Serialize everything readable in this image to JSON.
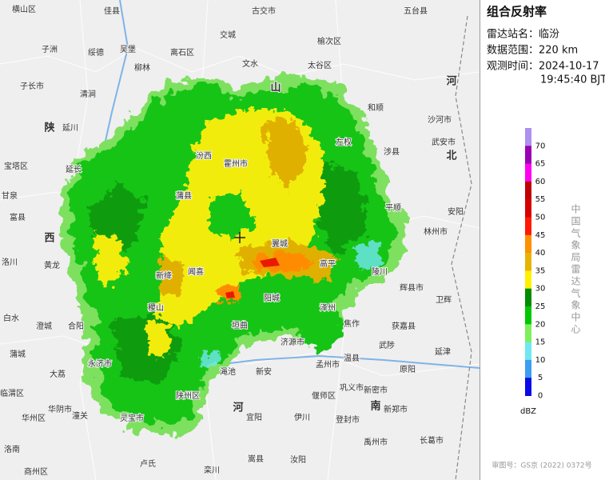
{
  "panel": {
    "title": "组合反射率",
    "station": "雷达站名：临汾",
    "range": "数据范围：220 km",
    "time_date": "观测时间：2024-10-17",
    "time_clock": "19:45:40 BJT",
    "unit": "dBZ",
    "credit": "中国气象局雷达气象中心",
    "approval": "审图号：GS京 (2022) 0372号",
    "levels": [
      {
        "value": 70,
        "color": "#ad90f0"
      },
      {
        "value": 65,
        "color": "#9a00b4"
      },
      {
        "value": 60,
        "color": "#ff00f0"
      },
      {
        "value": 55,
        "color": "#c00000"
      },
      {
        "value": 50,
        "color": "#d60000"
      },
      {
        "value": 45,
        "color": "#ff1a00"
      },
      {
        "value": 40,
        "color": "#ff9000"
      },
      {
        "value": 35,
        "color": "#e6b400"
      },
      {
        "value": 30,
        "color": "#fff000"
      },
      {
        "value": 25,
        "color": "#008c00"
      },
      {
        "value": 20,
        "color": "#00c800"
      },
      {
        "value": 15,
        "color": "#7ef05a"
      },
      {
        "value": 10,
        "color": "#70e8f0"
      },
      {
        "value": 5,
        "color": "#3c9ef0"
      },
      {
        "value": 0,
        "color": "#0a0ae8"
      }
    ]
  },
  "map": {
    "regions": [
      "陕",
      "西",
      "山",
      "河",
      "北",
      "河",
      "南"
    ],
    "places": [
      "横山区",
      "佳县",
      "古交市",
      "五台县",
      "子洲",
      "绥德",
      "吴堡",
      "离石区",
      "交城",
      "榆次区",
      "太谷区",
      "子长市",
      "清涧",
      "柳林",
      "文水",
      "延川",
      "宝塔区",
      "延长",
      "甘泉",
      "富县",
      "洛川",
      "黄龙",
      "白水",
      "澄城",
      "合阳",
      "蒲城",
      "大荔",
      "临渭区",
      "华州区",
      "华阴市",
      "潼关",
      "灵宝市",
      "洛南",
      "商州区",
      "卢氏",
      "栾川",
      "嵩县",
      "汝阳",
      "伊川",
      "宜阳",
      "偃师区",
      "巩义市",
      "登封市",
      "新郑市",
      "新密市",
      "禹州市",
      "长葛市",
      "孟州市",
      "济源市",
      "温县",
      "武陟",
      "原阳",
      "焦作",
      "获嘉县",
      "延津",
      "卫辉",
      "辉县市",
      "林州市",
      "安阳",
      "涉县",
      "武安市",
      "左权",
      "和顺",
      "沙河市",
      "平顺",
      "陵川",
      "泽州",
      "阳城",
      "高平",
      "翼城",
      "汾西",
      "霍州市",
      "蒲县",
      "新绛",
      "稷山",
      "闻喜",
      "垣曲",
      "永济市",
      "新安",
      "渑池",
      "陕州区"
    ]
  }
}
